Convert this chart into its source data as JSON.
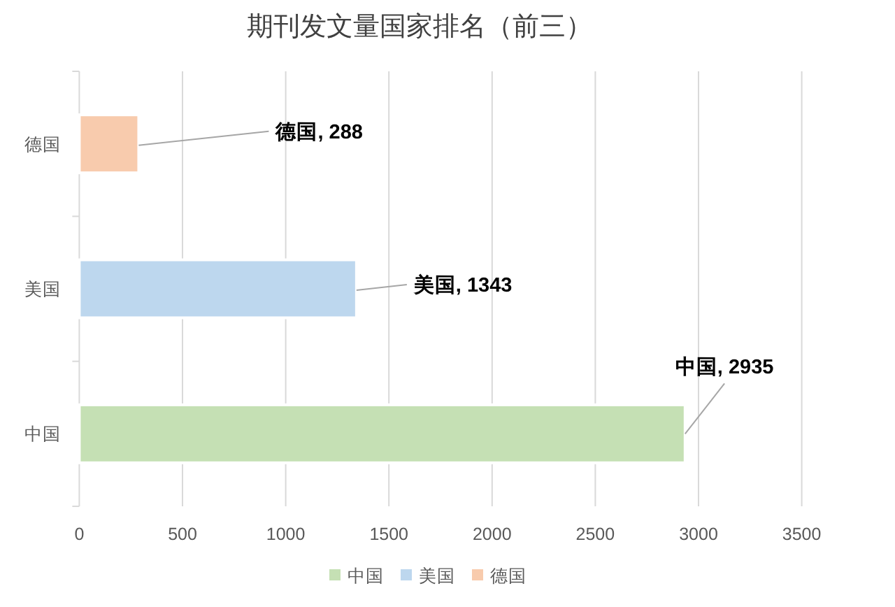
{
  "chart_data": {
    "type": "bar",
    "orientation": "horizontal",
    "title": "期刊发文量国家排名（前三）",
    "categories": [
      "德国",
      "美国",
      "中国"
    ],
    "series": [
      {
        "name": "中国",
        "color": "#c5e0b4",
        "values": [
          null,
          null,
          2935
        ],
        "value_labels": [
          null,
          null,
          "中国, 2935"
        ]
      },
      {
        "name": "美国",
        "color": "#bdd7ee",
        "values": [
          null,
          1343,
          null
        ],
        "value_labels": [
          null,
          "美国, 1343",
          null
        ]
      },
      {
        "name": "德国",
        "color": "#f8cbad",
        "values": [
          288,
          null,
          null
        ],
        "value_labels": [
          "德国, 288",
          null,
          null
        ]
      }
    ],
    "xlim": [
      0,
      3500
    ],
    "xticks": [
      0,
      500,
      1000,
      1500,
      2000,
      2500,
      3000,
      3500
    ],
    "grid": "x",
    "legend": "bottom"
  }
}
